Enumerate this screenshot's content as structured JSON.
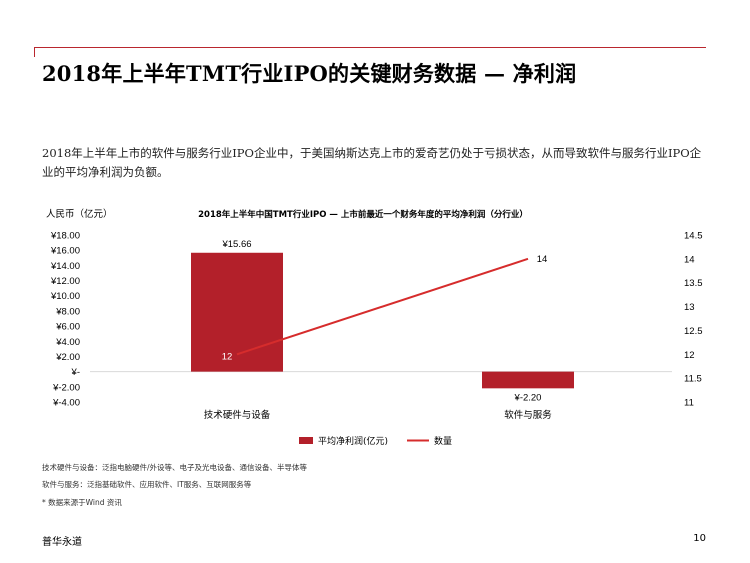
{
  "page": {
    "title": "2018年上半年TMT行业IPO的关键财务数据 — 净利润",
    "description": "2018年上半年上市的软件与服务行业IPO企业中，于美国纳斯达克上市的爱奇艺仍处于亏损状态，从而导致软件与服务行业IPO企业的平均净利润为负额。",
    "notes": [
      "技术硬件与设备：泛指电脑硬件/外设等、电子及光电设备、通信设备、半导体等",
      "软件与服务：泛指基础软件、应用软件、IT服务、互联网服务等",
      "* 数据来源于Wind 资讯"
    ],
    "footer_left": "普华永道",
    "footer_right": "10"
  },
  "colors": {
    "accent": "#b9272e",
    "bar": "#b3202a",
    "line": "#d62c2c"
  },
  "chart_data": {
    "type": "bar+line",
    "title": "2018年上半年中国TMT行业IPO — 上市前最近一个财务年度的平均净利润（分行业）",
    "left_axis_label": "人民币（亿元）",
    "categories": [
      "技术硬件与设备",
      "软件与服务"
    ],
    "series": [
      {
        "name": "平均净利润(亿元)",
        "type": "bar",
        "axis": "left",
        "values": [
          15.66,
          -2.2
        ],
        "labels": [
          "¥15.66",
          "¥-2.20"
        ]
      },
      {
        "name": "数量",
        "type": "line",
        "axis": "right",
        "values": [
          12,
          14
        ],
        "labels": [
          "12",
          "14"
        ]
      }
    ],
    "left_axis": {
      "min": -4,
      "max": 18,
      "ticks": [
        18,
        16,
        14,
        12,
        10,
        8,
        6,
        4,
        2,
        0,
        -2,
        -4
      ],
      "tick_labels": [
        "¥18.00",
        "¥16.00",
        "¥14.00",
        "¥12.00",
        "¥10.00",
        "¥8.00",
        "¥6.00",
        "¥4.00",
        "¥2.00",
        "¥-",
        "¥-2.00",
        "¥-4.00"
      ]
    },
    "right_axis": {
      "min": 11,
      "max": 14.5,
      "ticks": [
        14.5,
        14,
        13.5,
        13,
        12.5,
        12,
        11.5,
        11
      ],
      "tick_labels": [
        "14.5",
        "14",
        "13.5",
        "13",
        "12.5",
        "12",
        "11.5",
        "11"
      ]
    },
    "legend": {
      "position": "bottom"
    }
  }
}
